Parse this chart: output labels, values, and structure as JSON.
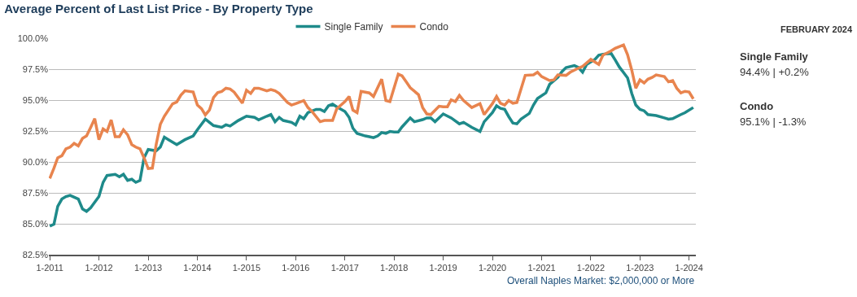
{
  "chart_data": {
    "type": "line",
    "title": "Average Percent of Last List Price - By Property Type",
    "legend": "top",
    "grid": "y",
    "marker": "none",
    "line_style": "solid",
    "xlim": [
      "2010-12-25",
      "2024-02-20"
    ],
    "ylim": [
      82.5,
      100
    ],
    "xticks": [
      {
        "value": "2011-01",
        "label": "1-2011"
      },
      {
        "value": "2012-01",
        "label": "1-2012"
      },
      {
        "value": "2013-01",
        "label": "1-2013"
      },
      {
        "value": "2014-01",
        "label": "1-2014"
      },
      {
        "value": "2015-01",
        "label": "1-2015"
      },
      {
        "value": "2016-01",
        "label": "1-2016"
      },
      {
        "value": "2017-01",
        "label": "1-2017"
      },
      {
        "value": "2018-01",
        "label": "1-2018"
      },
      {
        "value": "2019-01",
        "label": "1-2019"
      },
      {
        "value": "2020-01",
        "label": "1-2020"
      },
      {
        "value": "2021-01",
        "label": "1-2021"
      },
      {
        "value": "2022-01",
        "label": "1-2022"
      },
      {
        "value": "2023-01",
        "label": "1-2023"
      },
      {
        "value": "2024-01",
        "label": "1-2024"
      }
    ],
    "yticks": [
      {
        "value": 82.5,
        "label": "82.5%"
      },
      {
        "value": 85,
        "label": "85.0%"
      },
      {
        "value": 87.5,
        "label": "87.5%"
      },
      {
        "value": 90,
        "label": "90.0%"
      },
      {
        "value": 92.5,
        "label": "92.5%"
      },
      {
        "value": 95,
        "label": "95.0%"
      },
      {
        "value": 97.5,
        "label": "97.5%"
      },
      {
        "value": 100,
        "label": "100.0%"
      }
    ],
    "series": [
      {
        "name": "Single Family",
        "color": "#1e8a8a",
        "x": [
          "2011-01",
          "2011-02",
          "2011-03",
          "2011-04",
          "2011-05",
          "2011-06",
          "2011-08",
          "2011-09",
          "2011-10",
          "2011-11",
          "2012-01",
          "2012-02",
          "2012-03",
          "2012-05",
          "2012-06",
          "2012-07",
          "2012-08",
          "2012-09",
          "2012-10",
          "2012-11",
          "2012-12",
          "2013-01",
          "2013-03",
          "2013-04",
          "2013-05",
          "2013-06",
          "2013-08",
          "2013-10",
          "2013-12",
          "2014-01",
          "2014-03",
          "2014-05",
          "2014-07",
          "2014-08",
          "2014-09",
          "2014-11",
          "2015-01",
          "2015-03",
          "2015-04",
          "2015-06",
          "2015-07",
          "2015-08",
          "2015-09",
          "2015-10",
          "2015-12",
          "2016-01",
          "2016-02",
          "2016-03",
          "2016-04",
          "2016-06",
          "2016-07",
          "2016-08",
          "2016-09",
          "2016-10",
          "2016-11",
          "2017-01",
          "2017-02",
          "2017-03",
          "2017-04",
          "2017-06",
          "2017-07",
          "2017-08",
          "2017-09",
          "2017-10",
          "2017-11",
          "2017-12",
          "2018-01",
          "2018-02",
          "2018-03",
          "2018-05",
          "2018-06",
          "2018-08",
          "2018-09",
          "2018-10",
          "2018-11",
          "2019-01",
          "2019-03",
          "2019-05",
          "2019-06",
          "2019-08",
          "2019-10",
          "2019-11",
          "2020-01",
          "2020-02",
          "2020-03",
          "2020-04",
          "2020-05",
          "2020-06",
          "2020-07",
          "2020-08",
          "2020-10",
          "2020-11",
          "2020-12",
          "2021-02",
          "2021-03",
          "2021-05",
          "2021-06",
          "2021-07",
          "2021-09",
          "2021-10",
          "2021-11",
          "2021-12",
          "2022-02",
          "2022-03",
          "2022-04",
          "2022-06",
          "2022-07",
          "2022-08",
          "2022-10",
          "2022-11",
          "2022-12",
          "2023-01",
          "2023-02",
          "2023-03",
          "2023-05",
          "2023-07",
          "2023-08",
          "2023-09",
          "2023-11",
          "2023-12",
          "2024-02"
        ],
        "values": [
          84.8,
          84.96,
          86.4,
          87.0,
          87.2,
          87.3,
          87.0,
          86.2,
          86.0,
          86.3,
          87.2,
          88.35,
          88.9,
          89.0,
          88.8,
          89.0,
          88.5,
          88.6,
          88.35,
          88.5,
          90.33,
          91.0,
          90.9,
          91.2,
          92.0,
          91.8,
          91.4,
          91.8,
          92.1,
          92.6,
          93.46,
          92.94,
          92.8,
          93.0,
          92.9,
          93.35,
          93.7,
          93.6,
          93.4,
          93.7,
          93.83,
          93.25,
          93.6,
          93.35,
          93.2,
          93.0,
          93.7,
          93.5,
          93.98,
          94.25,
          94.25,
          94.08,
          94.54,
          94.67,
          94.46,
          94.08,
          93.6,
          92.73,
          92.31,
          92.1,
          92.04,
          91.96,
          92.1,
          92.38,
          92.31,
          92.46,
          92.42,
          92.42,
          92.83,
          93.56,
          93.25,
          93.42,
          93.56,
          93.56,
          93.25,
          93.88,
          93.56,
          93.08,
          93.2,
          92.79,
          92.46,
          93.25,
          93.98,
          94.54,
          94.33,
          94.25,
          93.67,
          93.15,
          93.08,
          93.46,
          93.92,
          94.6,
          95.13,
          95.58,
          96.27,
          96.83,
          97.31,
          97.63,
          97.79,
          97.63,
          97.25,
          97.88,
          98.29,
          98.63,
          98.71,
          98.77,
          98.25,
          97.67,
          96.79,
          95.54,
          94.6,
          94.25,
          94.13,
          93.83,
          93.75,
          93.56,
          93.46,
          93.5,
          93.83,
          93.98,
          94.4
        ]
      },
      {
        "name": "Condo",
        "color": "#e8844e",
        "x": [
          "2011-01",
          "2011-02",
          "2011-03",
          "2011-04",
          "2011-05",
          "2011-06",
          "2011-07",
          "2011-08",
          "2011-09",
          "2011-10",
          "2011-11",
          "2011-12",
          "2012-01",
          "2012-02",
          "2012-03",
          "2012-04",
          "2012-05",
          "2012-06",
          "2012-07",
          "2012-08",
          "2012-09",
          "2012-10",
          "2012-11",
          "2012-12",
          "2013-01",
          "2013-02",
          "2013-03",
          "2013-04",
          "2013-05",
          "2013-07",
          "2013-08",
          "2013-09",
          "2013-10",
          "2013-12",
          "2014-01",
          "2014-02",
          "2014-03",
          "2014-04",
          "2014-05",
          "2014-06",
          "2014-07",
          "2014-08",
          "2014-09",
          "2014-10",
          "2014-12",
          "2015-01",
          "2015-02",
          "2015-03",
          "2015-04",
          "2015-06",
          "2015-07",
          "2015-08",
          "2015-09",
          "2015-11",
          "2015-12",
          "2016-01",
          "2016-03",
          "2016-04",
          "2016-05",
          "2016-07",
          "2016-08",
          "2016-10",
          "2016-11",
          "2017-01",
          "2017-02",
          "2017-03",
          "2017-04",
          "2017-05",
          "2017-07",
          "2017-08",
          "2017-10",
          "2017-11",
          "2017-12",
          "2018-02",
          "2018-03",
          "2018-04",
          "2018-05",
          "2018-07",
          "2018-08",
          "2018-09",
          "2018-10",
          "2018-12",
          "2019-01",
          "2019-02",
          "2019-03",
          "2019-04",
          "2019-05",
          "2019-06",
          "2019-08",
          "2019-10",
          "2019-11",
          "2020-01",
          "2020-02",
          "2020-03",
          "2020-04",
          "2020-05",
          "2020-06",
          "2020-07",
          "2020-09",
          "2020-11",
          "2020-12",
          "2021-01",
          "2021-03",
          "2021-04",
          "2021-05",
          "2021-07",
          "2021-08",
          "2021-10",
          "2021-11",
          "2022-01",
          "2022-02",
          "2022-03",
          "2022-04",
          "2022-06",
          "2022-07",
          "2022-09",
          "2022-10",
          "2022-11",
          "2022-12",
          "2023-01",
          "2023-02",
          "2023-03",
          "2023-04",
          "2023-05",
          "2023-07",
          "2023-08",
          "2023-09",
          "2023-10",
          "2023-11",
          "2023-12",
          "2024-01",
          "2024-02"
        ],
        "values": [
          88.67,
          89.5,
          90.33,
          90.5,
          91.06,
          91.2,
          91.5,
          91.3,
          91.9,
          92.1,
          92.8,
          93.5,
          91.8,
          92.67,
          92.46,
          93.4,
          92.04,
          92.04,
          92.6,
          92.2,
          91.4,
          91.2,
          91.06,
          90.33,
          89.46,
          89.5,
          91.4,
          93.04,
          93.7,
          94.7,
          94.85,
          95.4,
          95.75,
          95.65,
          94.6,
          94.3,
          93.8,
          94.2,
          95.2,
          95.6,
          95.7,
          95.96,
          95.9,
          95.65,
          94.75,
          95.8,
          95.54,
          95.96,
          95.96,
          95.75,
          95.85,
          95.75,
          95.54,
          94.81,
          94.6,
          94.71,
          94.96,
          94.4,
          94.08,
          93.25,
          93.35,
          93.35,
          94.29,
          94.88,
          95.29,
          94.19,
          93.98,
          95.71,
          95.58,
          95.29,
          96.69,
          94.96,
          94.88,
          97.1,
          96.96,
          96.48,
          96.0,
          95.44,
          94.4,
          93.88,
          93.83,
          94.5,
          94.46,
          94.46,
          95.02,
          94.88,
          95.38,
          94.96,
          94.4,
          94.71,
          93.83,
          94.71,
          95.29,
          94.75,
          94.6,
          94.96,
          94.75,
          94.81,
          97.0,
          97.04,
          97.25,
          96.9,
          96.58,
          96.63,
          97.04,
          97.0,
          97.25,
          97.58,
          97.73,
          98.29,
          98.08,
          97.88,
          98.63,
          98.98,
          99.19,
          99.46,
          98.67,
          97.42,
          95.96,
          96.63,
          96.38,
          96.69,
          96.83,
          97.04,
          96.9,
          96.48,
          96.58,
          95.96,
          95.58,
          95.71,
          95.65,
          95.1
        ]
      }
    ],
    "annotations": [
      "FEBRUARY 2024",
      "Single Family",
      "94.4% | +0.2%",
      "Condo",
      "95.1% | -1.3%",
      "Overall Naples Market: $2,000,000 or More"
    ]
  }
}
